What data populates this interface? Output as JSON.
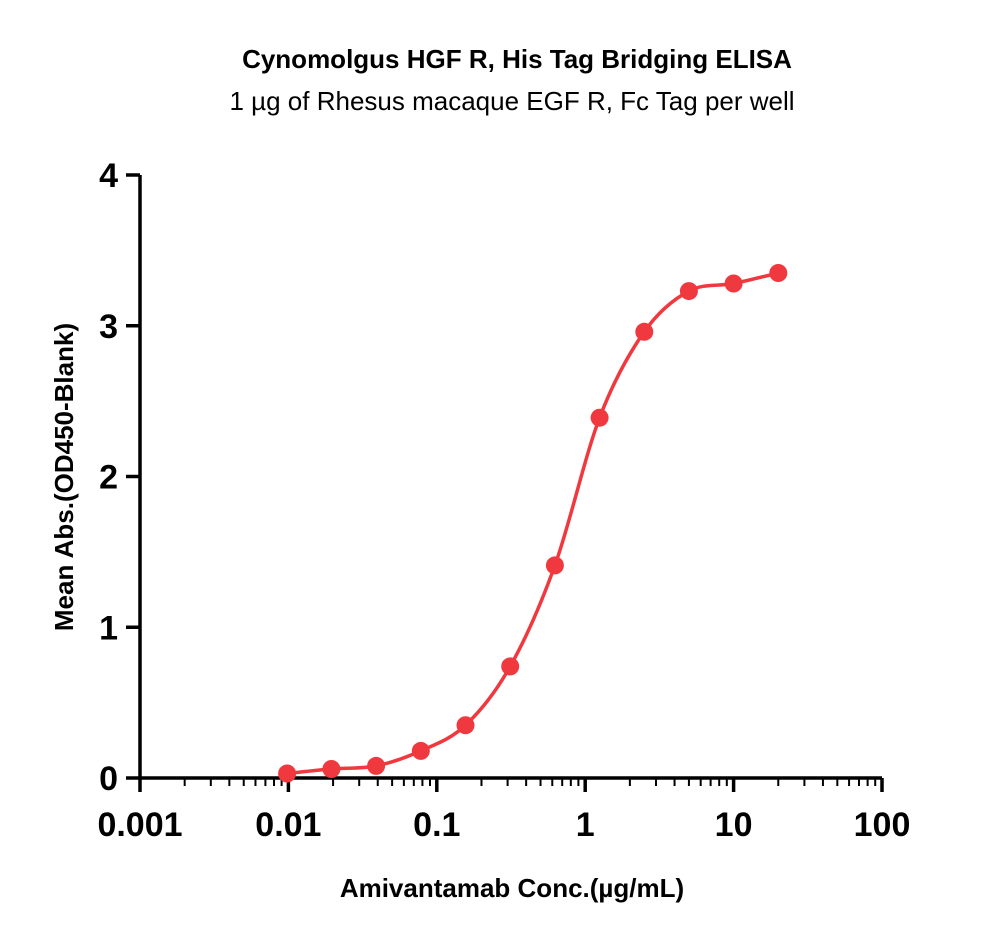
{
  "chart_data": {
    "type": "scatter",
    "title": "Cynomolgus HGF R, His Tag Bridging ELISA",
    "subtitle": "1 µg of Rhesus macaque EGF R, Fc Tag per well",
    "xlabel": "Amivantamab Conc.(µg/mL)",
    "ylabel": "Mean Abs.(OD450-Blank)",
    "x_scale": "log",
    "xlim": [
      0.001,
      100
    ],
    "ylim": [
      0,
      4
    ],
    "x_ticks": [
      "0.001",
      "0.01",
      "0.1",
      "1",
      "10",
      "100"
    ],
    "y_ticks": [
      "0",
      "1",
      "2",
      "3",
      "4"
    ],
    "grid": false,
    "colors": {
      "series": "#f0393f"
    },
    "series": [
      {
        "x": [
          0.0098,
          0.0195,
          0.039,
          0.078,
          0.156,
          0.3125,
          0.625,
          1.25,
          2.5,
          5,
          10,
          20
        ],
        "y": [
          0.03,
          0.06,
          0.08,
          0.18,
          0.35,
          0.74,
          1.41,
          2.39,
          2.96,
          3.23,
          3.28,
          3.35
        ]
      }
    ]
  }
}
